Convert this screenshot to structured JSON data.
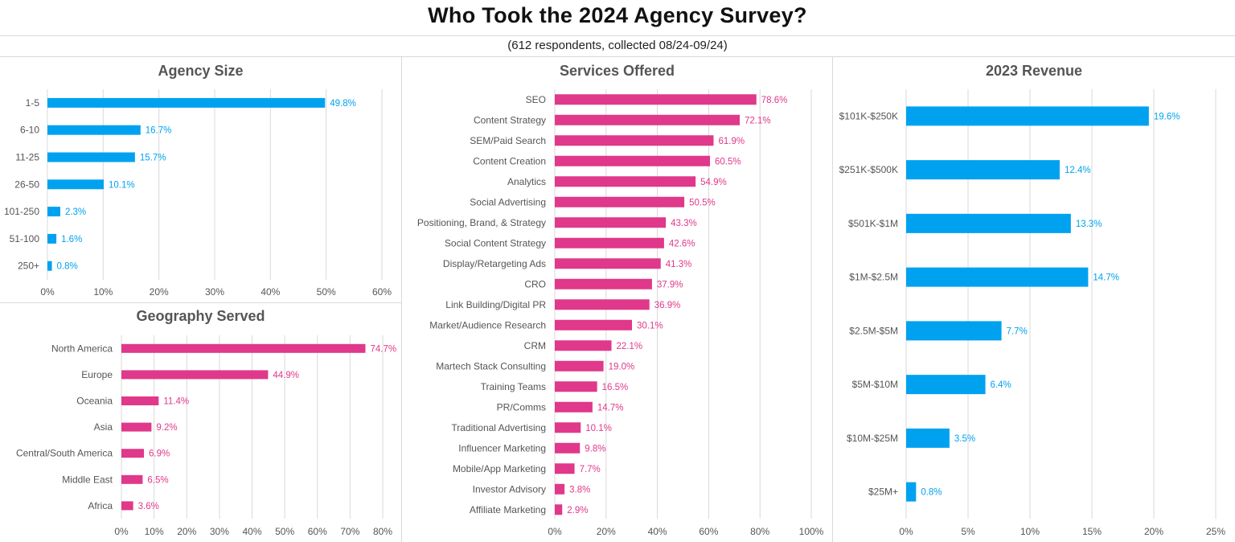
{
  "header": {
    "title": "Who Took the 2024 Agency Survey?",
    "subtitle": "(612 respondents, collected 08/24-09/24)"
  },
  "colors": {
    "blue": "#00a2f0",
    "pink": "#e0388a",
    "grid": "#d9d9d9",
    "axis_text": "#555555"
  },
  "chart_data": [
    {
      "id": "agency-size",
      "type": "bar",
      "orientation": "horizontal",
      "title": "Agency Size",
      "color": "#00a2f0",
      "categories": [
        "1-5",
        "6-10",
        "11-25",
        "26-50",
        "101-250",
        "51-100",
        "250+"
      ],
      "values": [
        49.8,
        16.7,
        15.7,
        10.1,
        2.3,
        1.6,
        0.8
      ],
      "xlim": [
        0,
        60
      ],
      "xticks": [
        0,
        10,
        20,
        30,
        40,
        50,
        60
      ],
      "unit": "%",
      "grid": true
    },
    {
      "id": "geography-served",
      "type": "bar",
      "orientation": "horizontal",
      "title": "Geography Served",
      "color": "#e0388a",
      "categories": [
        "North America",
        "Europe",
        "Oceania",
        "Asia",
        "Central/South America",
        "Middle East",
        "Africa"
      ],
      "values": [
        74.7,
        44.9,
        11.4,
        9.2,
        6.9,
        6.5,
        3.6
      ],
      "xlim": [
        0,
        80
      ],
      "xticks": [
        0,
        10,
        20,
        30,
        40,
        50,
        60,
        70,
        80
      ],
      "unit": "%",
      "grid": true
    },
    {
      "id": "services-offered",
      "type": "bar",
      "orientation": "horizontal",
      "title": "Services Offered",
      "color": "#e0388a",
      "categories": [
        "SEO",
        "Content Strategy",
        "SEM/Paid Search",
        "Content Creation",
        "Analytics",
        "Social Advertising",
        "Positioning, Brand, & Strategy",
        "Social Content Strategy",
        "Display/Retargeting Ads",
        "CRO",
        "Link Building/Digital PR",
        "Market/Audience Research",
        "CRM",
        "Martech Stack Consulting",
        "Training Teams",
        "PR/Comms",
        "Traditional Advertising",
        "Influencer Marketing",
        "Mobile/App Marketing",
        "Investor Advisory",
        "Affiliate Marketing"
      ],
      "values": [
        78.6,
        72.1,
        61.9,
        60.5,
        54.9,
        50.5,
        43.3,
        42.6,
        41.3,
        37.9,
        36.9,
        30.1,
        22.1,
        19.0,
        16.5,
        14.7,
        10.1,
        9.8,
        7.7,
        3.8,
        2.9
      ],
      "xlim": [
        0,
        100
      ],
      "xticks": [
        0,
        20,
        40,
        60,
        80,
        100
      ],
      "unit": "%",
      "grid": true
    },
    {
      "id": "revenue-2023",
      "type": "bar",
      "orientation": "horizontal",
      "title": "2023 Revenue",
      "color": "#00a2f0",
      "categories": [
        "$101K-$250K",
        "$251K-$500K",
        "$501K-$1M",
        "$1M-$2.5M",
        "$2.5M-$5M",
        "$5M-$10M",
        "$10M-$25M",
        "$25M+"
      ],
      "values": [
        19.6,
        12.4,
        13.3,
        14.7,
        7.7,
        6.4,
        3.5,
        0.8
      ],
      "xlim": [
        0,
        25
      ],
      "xticks": [
        0,
        5,
        10,
        15,
        20,
        25
      ],
      "unit": "%",
      "grid": true
    }
  ]
}
